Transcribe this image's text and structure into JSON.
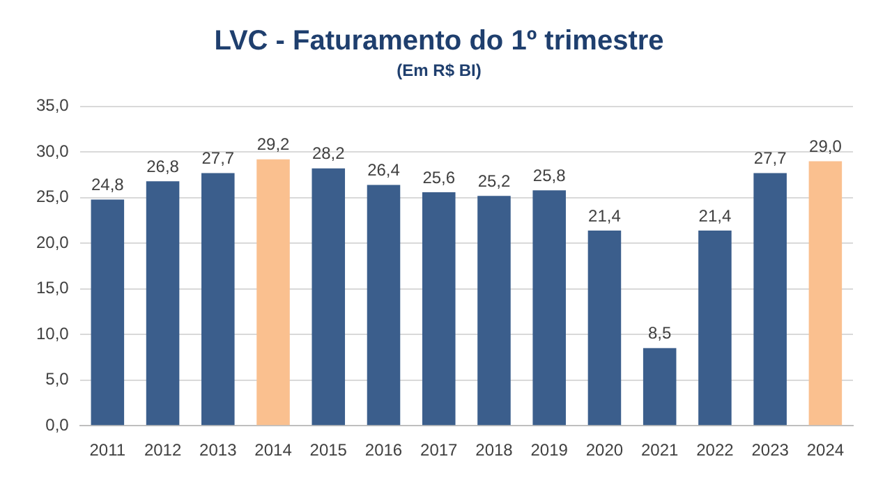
{
  "chart_data": {
    "type": "bar",
    "title": "LVC - Faturamento do 1º trimestre",
    "subtitle": "(Em R$ BI)",
    "categories": [
      "2011",
      "2012",
      "2013",
      "2014",
      "2015",
      "2016",
      "2017",
      "2018",
      "2019",
      "2020",
      "2021",
      "2022",
      "2023",
      "2024"
    ],
    "values": [
      24.8,
      26.8,
      27.7,
      29.2,
      28.2,
      26.4,
      25.6,
      25.2,
      25.8,
      21.4,
      8.5,
      21.4,
      27.7,
      29.0
    ],
    "colors": [
      "#3b5e8c",
      "#3b5e8c",
      "#3b5e8c",
      "#fac08f",
      "#3b5e8c",
      "#3b5e8c",
      "#3b5e8c",
      "#3b5e8c",
      "#3b5e8c",
      "#3b5e8c",
      "#3b5e8c",
      "#3b5e8c",
      "#3b5e8c",
      "#fac08f"
    ],
    "value_labels": [
      "24,8",
      "26,8",
      "27,7",
      "29,2",
      "28,2",
      "26,4",
      "25,6",
      "25,2",
      "25,8",
      "21,4",
      "8,5",
      "21,4",
      "27,7",
      "29,0"
    ],
    "ylim": [
      0,
      35
    ],
    "yticks": [
      {
        "value": 0,
        "label": "0,0"
      },
      {
        "value": 5,
        "label": "5,0"
      },
      {
        "value": 10,
        "label": "10,0"
      },
      {
        "value": 15,
        "label": "15,0"
      },
      {
        "value": 20,
        "label": "20,0"
      },
      {
        "value": 25,
        "label": "25,0"
      },
      {
        "value": 30,
        "label": "30,0"
      },
      {
        "value": 35,
        "label": "35,0"
      }
    ],
    "grid": "y",
    "legend": false
  }
}
